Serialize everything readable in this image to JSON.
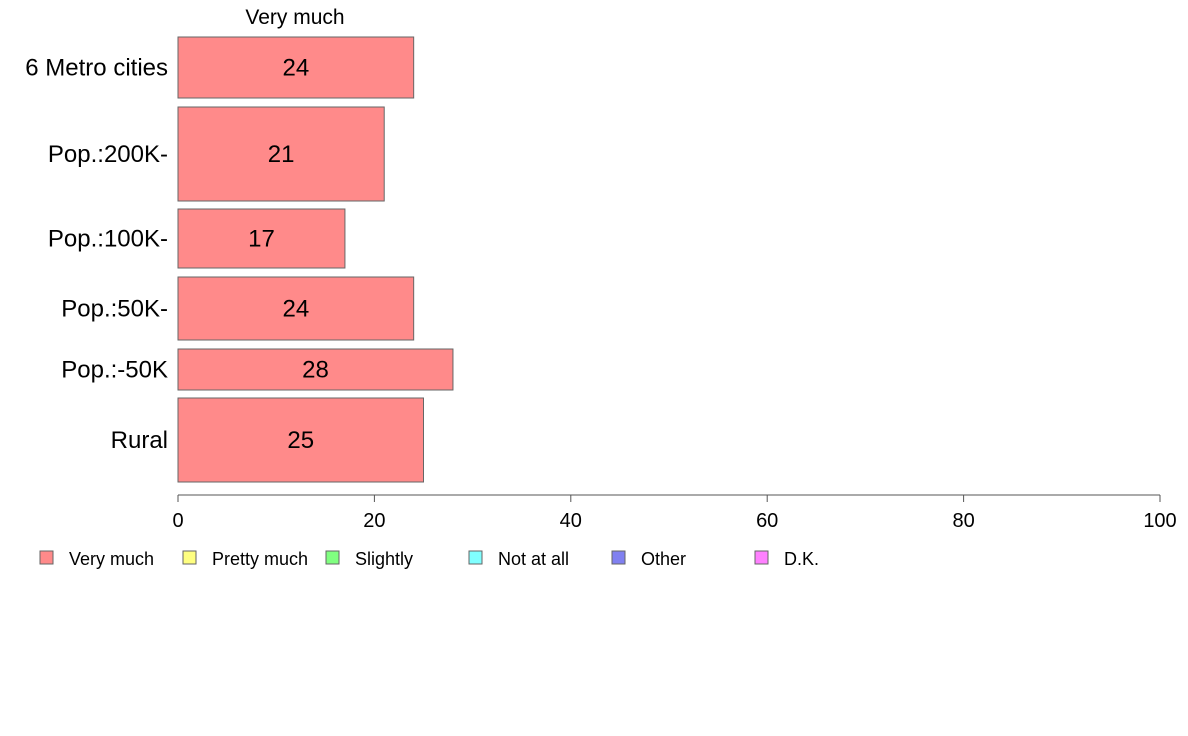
{
  "chart_data": {
    "type": "bar",
    "orientation": "horizontal",
    "stacked": true,
    "series_header": "Very much",
    "categories": [
      "6 Metro cities",
      "Pop.:200K-",
      "Pop.:100K-",
      "Pop.:50K-",
      "Pop.:-50K",
      "Rural"
    ],
    "series": [
      {
        "name": "Very much",
        "values": [
          24,
          21,
          17,
          24,
          28,
          25
        ],
        "color": "#ff8a8a"
      }
    ],
    "xlim": [
      0,
      100
    ],
    "xticks": [
      "0",
      "20",
      "40",
      "60",
      "80",
      "100"
    ],
    "grid": false,
    "legend": {
      "position": "bottom-left",
      "items": [
        {
          "label": "Very much",
          "color": "#ff8a8a"
        },
        {
          "label": "Pretty much",
          "color": "#ffff80"
        },
        {
          "label": "Slightly",
          "color": "#80ff80"
        },
        {
          "label": "Not at all",
          "color": "#80ffff"
        },
        {
          "label": "Other",
          "color": "#8080f0"
        },
        {
          "label": "D.K.",
          "color": "#ff80ff"
        }
      ]
    },
    "colors": {
      "bar_stroke": "#666666",
      "axis": "#555555"
    }
  }
}
